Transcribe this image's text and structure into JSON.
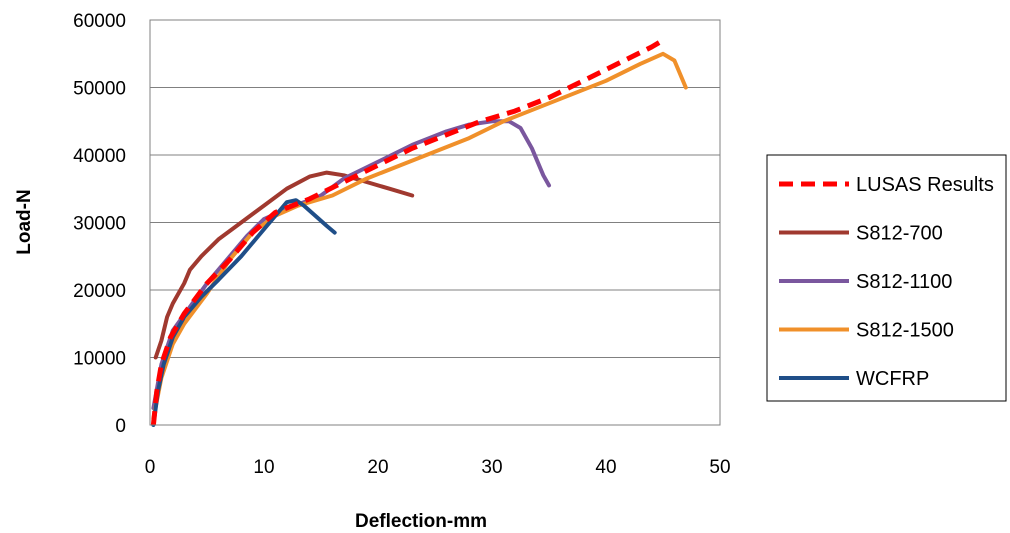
{
  "chart_data": {
    "type": "line",
    "title": "",
    "xlabel": "Deflection-mm",
    "ylabel": "Load-N",
    "xlim": [
      0,
      50
    ],
    "ylim": [
      0,
      60000
    ],
    "x_ticks": [
      "0",
      "10",
      "20",
      "30",
      "40",
      "50"
    ],
    "y_ticks": [
      "0",
      "10000",
      "20000",
      "30000",
      "40000",
      "50000",
      "60000"
    ],
    "grid": "horizontal",
    "legend_position": "right",
    "series": [
      {
        "name": "LUSAS Results",
        "color": "#ff0000",
        "style": "dashed",
        "points": [
          [
            0.3,
            0
          ],
          [
            0.6,
            5000
          ],
          [
            1.0,
            9000
          ],
          [
            1.8,
            13000
          ],
          [
            3,
            16500
          ],
          [
            5,
            21000
          ],
          [
            7,
            24500
          ],
          [
            9,
            28500
          ],
          [
            11,
            31500
          ],
          [
            14,
            33500
          ],
          [
            17,
            36000
          ],
          [
            20,
            38500
          ],
          [
            23,
            41000
          ],
          [
            26,
            43000
          ],
          [
            29,
            45000
          ],
          [
            32,
            46500
          ],
          [
            35,
            48500
          ],
          [
            38,
            51000
          ],
          [
            41,
            53500
          ],
          [
            44,
            56000
          ],
          [
            45,
            57000
          ]
        ]
      },
      {
        "name": "S812-700",
        "color": "#a0392f",
        "style": "solid",
        "points": [
          [
            0.5,
            10000
          ],
          [
            1.0,
            12500
          ],
          [
            1.5,
            16000
          ],
          [
            2.0,
            18000
          ],
          [
            3.0,
            21000
          ],
          [
            3.5,
            23000
          ],
          [
            4.5,
            25000
          ],
          [
            6,
            27500
          ],
          [
            8,
            30000
          ],
          [
            10,
            32500
          ],
          [
            12,
            35000
          ],
          [
            14,
            36800
          ],
          [
            15.5,
            37400
          ],
          [
            17,
            37000
          ],
          [
            19,
            36000
          ],
          [
            21,
            35000
          ],
          [
            23,
            34000
          ]
        ]
      },
      {
        "name": "S812-1100",
        "color": "#7a579e",
        "style": "solid",
        "points": [
          [
            0.3,
            2500
          ],
          [
            1.0,
            9000
          ],
          [
            2.0,
            14000
          ],
          [
            3.5,
            17500
          ],
          [
            5,
            21000
          ],
          [
            7,
            25000
          ],
          [
            8.5,
            28000
          ],
          [
            10,
            30500
          ],
          [
            12,
            32000
          ],
          [
            15,
            34000
          ],
          [
            17,
            36500
          ],
          [
            20,
            39000
          ],
          [
            23,
            41500
          ],
          [
            26,
            43500
          ],
          [
            28,
            44500
          ],
          [
            30,
            45000
          ],
          [
            31.5,
            45000
          ],
          [
            32.5,
            44000
          ],
          [
            33.5,
            41000
          ],
          [
            34.5,
            37000
          ],
          [
            35,
            35500
          ]
        ]
      },
      {
        "name": "S812-1500",
        "color": "#f0902a",
        "style": "solid",
        "points": [
          [
            0.3,
            1000
          ],
          [
            1.0,
            7000
          ],
          [
            2.0,
            12000
          ],
          [
            3,
            15000
          ],
          [
            5,
            19500
          ],
          [
            7,
            24500
          ],
          [
            9,
            28500
          ],
          [
            11,
            31000
          ],
          [
            13,
            32500
          ],
          [
            16,
            34000
          ],
          [
            19,
            36500
          ],
          [
            22,
            38500
          ],
          [
            25,
            40500
          ],
          [
            28,
            42500
          ],
          [
            31,
            45000
          ],
          [
            34,
            47000
          ],
          [
            37,
            49000
          ],
          [
            40,
            51000
          ],
          [
            43,
            53500
          ],
          [
            45,
            55000
          ],
          [
            46,
            54000
          ],
          [
            47,
            50000
          ]
        ]
      },
      {
        "name": "WCFRP",
        "color": "#1f4e88",
        "style": "solid",
        "points": [
          [
            0.3,
            0
          ],
          [
            0.7,
            5000
          ],
          [
            1.2,
            9000
          ],
          [
            2.0,
            13000
          ],
          [
            3,
            16000
          ],
          [
            4.5,
            19000
          ],
          [
            6,
            21500
          ],
          [
            8,
            25000
          ],
          [
            9.5,
            28000
          ],
          [
            11,
            31000
          ],
          [
            12,
            33000
          ],
          [
            12.8,
            33300
          ],
          [
            13.5,
            32500
          ],
          [
            14.5,
            31000
          ],
          [
            15.5,
            29500
          ],
          [
            16.2,
            28500
          ]
        ]
      }
    ]
  }
}
